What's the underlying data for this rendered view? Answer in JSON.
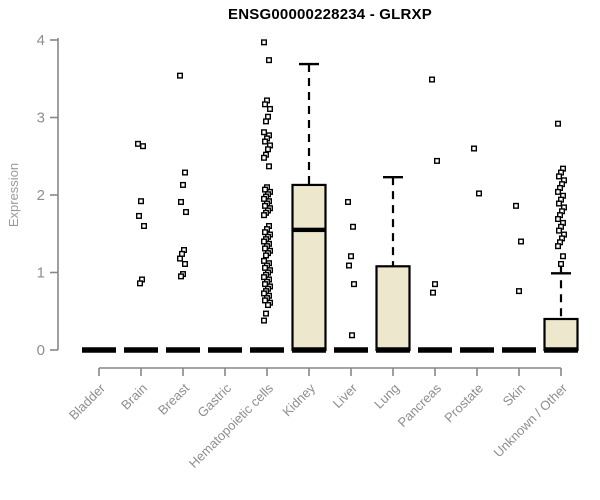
{
  "chart_data": {
    "type": "boxplot",
    "title": "ENSG00000228234 - GLRXP",
    "ylabel": "Expression",
    "xlabel": "",
    "ylim": [
      0,
      4
    ],
    "yticks": [
      0,
      1,
      2,
      3,
      4
    ],
    "grid": false,
    "legend": "none",
    "colors": {
      "box_fill": "#ece7cd",
      "box_border": "#000000",
      "median": "#000000",
      "whisker": "#000000",
      "outlier_stroke": "#000000",
      "outlier_fill": "#ffffff",
      "axis_line": "#878787",
      "axis_text": "#8e8e8e",
      "title_text": "#000000",
      "background": "#ffffff"
    },
    "categories": [
      "Bladder",
      "Brain",
      "Breast",
      "Gastric",
      "Hematopoietic cells",
      "Kidney",
      "Liver",
      "Lung",
      "Pancreas",
      "Prostate",
      "Skin",
      "Unknown / Other"
    ],
    "series": [
      {
        "name": "Bladder",
        "q1": 0,
        "median": 0,
        "q3": 0,
        "whisker_low": 0,
        "whisker_high": 0,
        "outliers": []
      },
      {
        "name": "Brain",
        "q1": 0,
        "median": 0,
        "q3": 0,
        "whisker_low": 0,
        "whisker_high": 0,
        "outliers": [
          2.66,
          2.63,
          1.92,
          1.73,
          1.6,
          0.91,
          0.86
        ]
      },
      {
        "name": "Breast",
        "q1": 0,
        "median": 0,
        "q3": 0,
        "whisker_low": 0,
        "whisker_high": 0,
        "outliers": [
          3.54,
          2.29,
          2.13,
          1.91,
          1.78,
          1.29,
          1.24,
          1.18,
          1.11,
          0.98,
          0.95
        ]
      },
      {
        "name": "Gastric",
        "q1": 0,
        "median": 0,
        "q3": 0,
        "whisker_low": 0,
        "whisker_high": 0,
        "outliers": []
      },
      {
        "name": "Hematopoietic cells",
        "q1": 0,
        "median": 0,
        "q3": 0,
        "whisker_low": 0,
        "whisker_high": 0,
        "outliers": [
          3.97,
          3.74,
          3.22,
          3.17,
          3.11,
          3.01,
          2.95,
          2.81,
          2.77,
          2.73,
          2.69,
          2.64,
          2.59,
          2.52,
          2.48,
          2.37,
          2.1,
          2.07,
          2.04,
          2.01,
          1.98,
          1.95,
          1.92,
          1.89,
          1.86,
          1.83,
          1.8,
          1.77,
          1.74,
          1.6,
          1.56,
          1.52,
          1.49,
          1.46,
          1.43,
          1.4,
          1.37,
          1.34,
          1.31,
          1.28,
          1.25,
          1.22,
          1.15,
          1.12,
          1.09,
          1.06,
          1.03,
          1.0,
          0.97,
          0.94,
          0.91,
          0.88,
          0.85,
          0.82,
          0.79,
          0.76,
          0.73,
          0.7,
          0.67,
          0.64,
          0.61,
          0.58,
          0.47,
          0.38
        ]
      },
      {
        "name": "Kidney",
        "q1": 0,
        "median": 1.55,
        "q3": 2.13,
        "whisker_low": 0,
        "whisker_high": 3.69,
        "outliers": []
      },
      {
        "name": "Liver",
        "q1": 0,
        "median": 0,
        "q3": 0,
        "whisker_low": 0,
        "whisker_high": 0,
        "outliers": [
          1.91,
          1.59,
          1.21,
          1.09,
          0.85,
          0.19
        ]
      },
      {
        "name": "Lung",
        "q1": 0,
        "median": 0,
        "q3": 1.08,
        "whisker_low": 0,
        "whisker_high": 2.23,
        "outliers": []
      },
      {
        "name": "Pancreas",
        "q1": 0,
        "median": 0,
        "q3": 0,
        "whisker_low": 0,
        "whisker_high": 0,
        "outliers": [
          3.49,
          2.44,
          0.85,
          0.74
        ]
      },
      {
        "name": "Prostate",
        "q1": 0,
        "median": 0,
        "q3": 0,
        "whisker_low": 0,
        "whisker_high": 0,
        "outliers": [
          2.6,
          2.02
        ]
      },
      {
        "name": "Skin",
        "q1": 0,
        "median": 0,
        "q3": 0,
        "whisker_low": 0,
        "whisker_high": 0,
        "outliers": [
          1.86,
          1.4,
          0.76
        ]
      },
      {
        "name": "Unknown / Other",
        "q1": 0,
        "median": 0,
        "q3": 0.4,
        "whisker_low": 0,
        "whisker_high": 0.99,
        "cap_stub": true,
        "outliers": [
          2.92,
          2.34,
          2.29,
          2.24,
          2.19,
          2.14,
          2.09,
          2.04,
          1.99,
          1.94,
          1.89,
          1.84,
          1.79,
          1.74,
          1.69,
          1.64,
          1.59,
          1.54,
          1.49,
          1.44,
          1.39,
          1.34,
          1.21,
          1.11
        ]
      }
    ]
  }
}
